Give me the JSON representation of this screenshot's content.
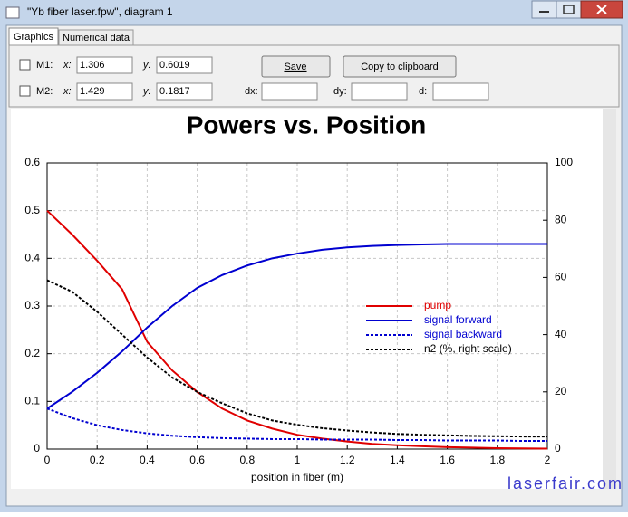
{
  "window": {
    "title": "\"Yb fiber laser.fpw\", diagram 1"
  },
  "tabs": [
    "Graphics",
    "Numerical data"
  ],
  "markers": [
    {
      "label": "M1:",
      "x_label": "x:",
      "x": 1.306,
      "y_label": "y:",
      "y": 0.6019
    },
    {
      "label": "M2:",
      "x_label": "x:",
      "x": 1.429,
      "y_label": "y:",
      "y": 0.1817
    }
  ],
  "diff_labels": [
    "dx:",
    "dy:",
    "d:"
  ],
  "buttons": [
    "Save",
    "Copy to clipboard"
  ],
  "watermark": "laserfair.com",
  "chart_data": {
    "type": "line",
    "title": "Powers vs. Position",
    "xlabel": "position in fiber (m)",
    "x": [
      0,
      0.1,
      0.2,
      0.3,
      0.4,
      0.5,
      0.6,
      0.7,
      0.8,
      0.9,
      1,
      1.1,
      1.2,
      1.3,
      1.4,
      1.5,
      1.6,
      1.7,
      1.8,
      1.9,
      2
    ],
    "series": [
      {
        "name": "pump",
        "color": "#e00000",
        "line_style": "solid",
        "values": [
          0.5,
          0.45,
          0.395,
          0.335,
          0.225,
          0.165,
          0.12,
          0.085,
          0.06,
          0.043,
          0.03,
          0.022,
          0.016,
          0.011,
          0.008,
          0.006,
          0.004,
          0.003,
          0.002,
          0.0015,
          0.001
        ]
      },
      {
        "name": "signal forward",
        "color": "#0000d0",
        "line_style": "solid",
        "values": [
          0.085,
          0.12,
          0.16,
          0.205,
          0.255,
          0.3,
          0.338,
          0.365,
          0.385,
          0.4,
          0.41,
          0.418,
          0.423,
          0.426,
          0.428,
          0.429,
          0.43,
          0.43,
          0.43,
          0.43,
          0.43
        ]
      },
      {
        "name": "signal backward",
        "color": "#0000d0",
        "line_style": "dashed",
        "values": [
          0.085,
          0.065,
          0.05,
          0.04,
          0.033,
          0.028,
          0.025,
          0.023,
          0.022,
          0.021,
          0.021,
          0.02,
          0.02,
          0.02,
          0.019,
          0.019,
          0.018,
          0.018,
          0.018,
          0.017,
          0.017
        ]
      },
      {
        "name": "n2 (%, right scale)",
        "color": "#000000",
        "line_style": "dashed",
        "axis": "y2",
        "values": [
          59,
          55,
          48,
          40,
          32,
          25,
          20,
          16,
          12.5,
          10,
          8.5,
          7.3,
          6.5,
          5.8,
          5.3,
          5,
          4.8,
          4.6,
          4.5,
          4.4,
          4.4
        ]
      }
    ],
    "xlim": [
      0,
      2
    ],
    "xticks": [
      0,
      0.2,
      0.4,
      0.6,
      0.8,
      1,
      1.2,
      1.4,
      1.6,
      1.8,
      2
    ],
    "ylim": [
      0,
      0.6
    ],
    "yticks": [
      0,
      0.1,
      0.2,
      0.3,
      0.4,
      0.5,
      0.6
    ],
    "y2lim": [
      0,
      100
    ],
    "y2ticks": [
      0,
      20,
      40,
      60,
      80,
      100
    ],
    "grid": true,
    "legend": "right"
  }
}
